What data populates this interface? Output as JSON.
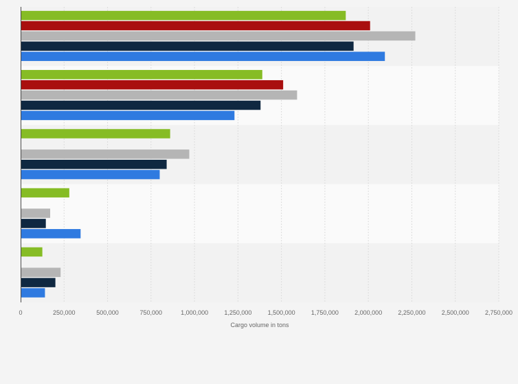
{
  "chart_data": {
    "type": "bar",
    "orientation": "horizontal",
    "title": "",
    "xlabel": "Cargo volume in tons",
    "ylabel": "",
    "xlim": [
      0,
      2750000
    ],
    "x_ticks": [
      0,
      250000,
      500000,
      750000,
      1000000,
      1250000,
      1500000,
      1750000,
      2000000,
      2250000,
      2500000,
      2750000
    ],
    "x_tick_labels": [
      "0",
      "250,000",
      "500,000",
      "750,000",
      "1,000,000",
      "1,250,000",
      "1,500,000",
      "1,750,000",
      "2,000,000",
      "2,250,000",
      "2,500,000",
      "2,750,000"
    ],
    "grid": true,
    "legend": "none",
    "categories": [
      "",
      "",
      "",
      "",
      ""
    ],
    "series": [
      {
        "color": "#86bc25",
        "values": [
          1870000,
          1390000,
          860000,
          280000,
          125000
        ]
      },
      {
        "color": "#a90f0f",
        "values": [
          2010000,
          1510000,
          null,
          null,
          null
        ]
      },
      {
        "color": "#b5b5b5",
        "values": [
          2270000,
          1590000,
          970000,
          170000,
          230000
        ]
      },
      {
        "color": "#0f2841",
        "values": [
          1915000,
          1380000,
          840000,
          145000,
          200000
        ]
      },
      {
        "color": "#2f7ae0",
        "values": [
          2095000,
          1230000,
          800000,
          345000,
          140000
        ]
      }
    ]
  }
}
